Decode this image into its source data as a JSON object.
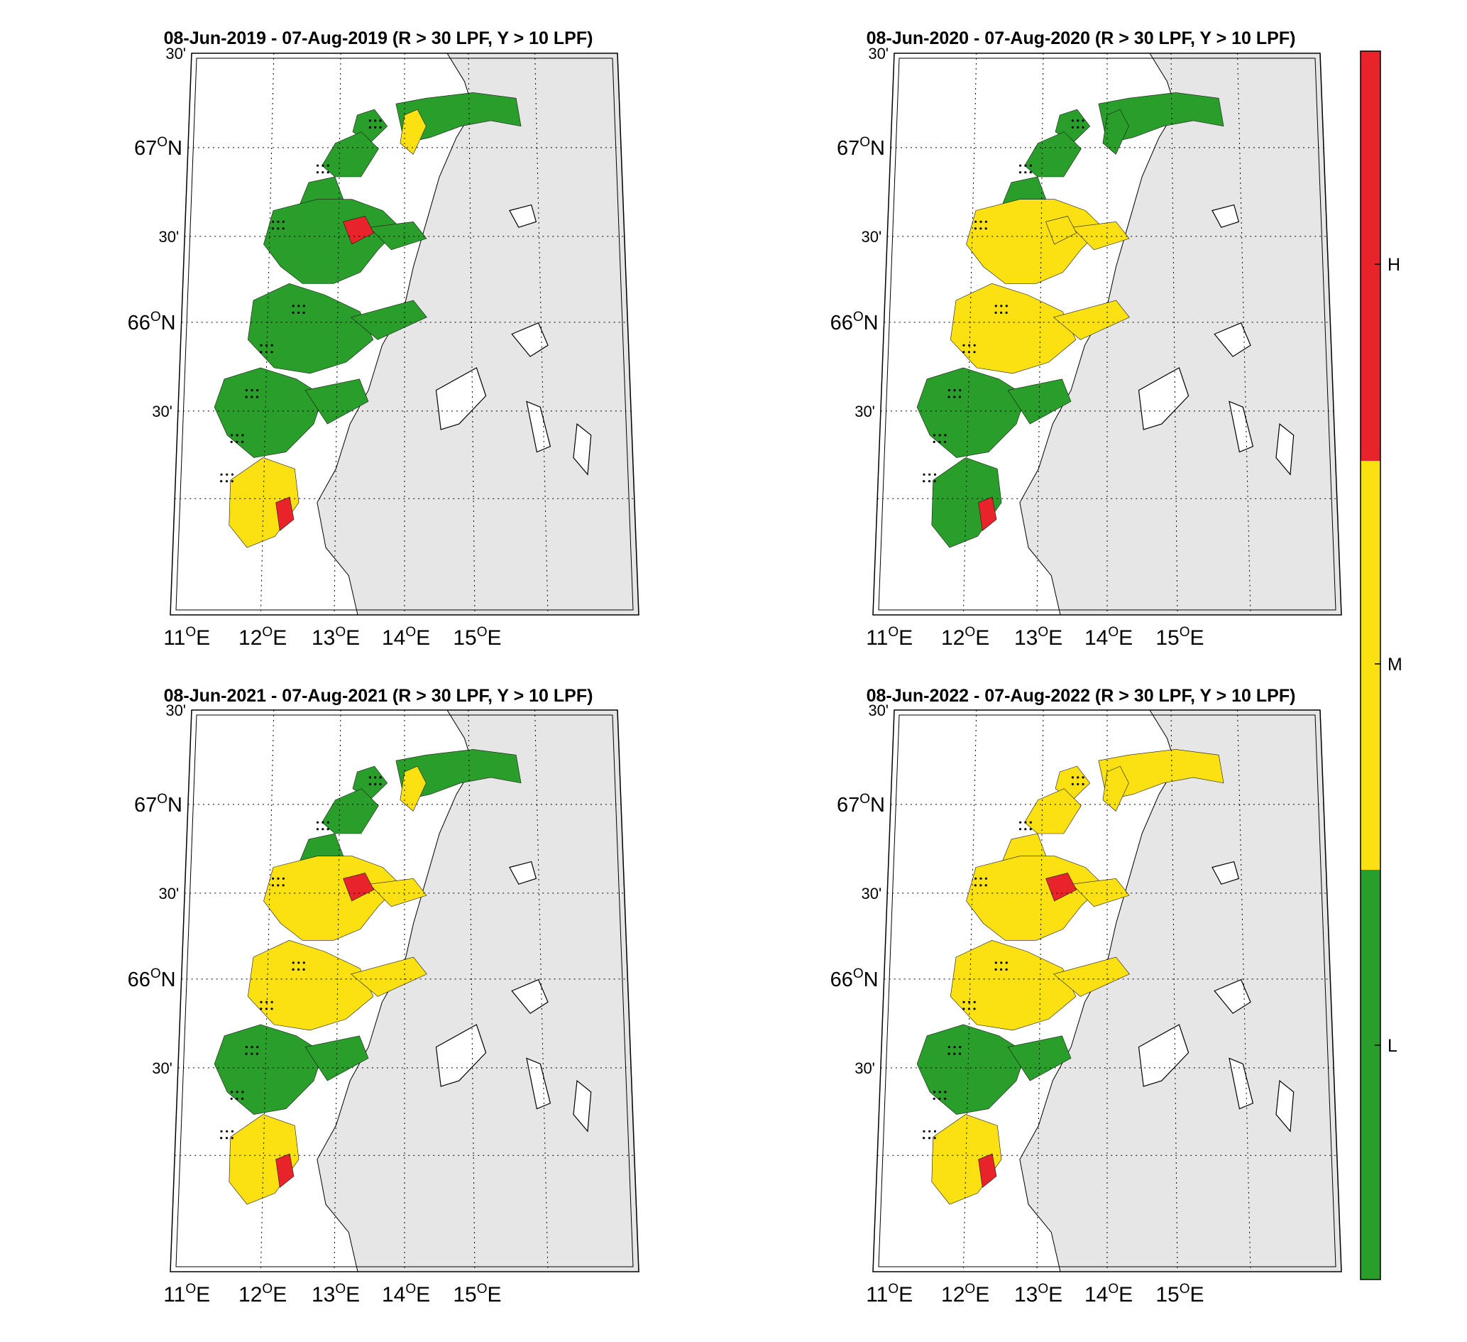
{
  "colors": {
    "high": "#e8232a",
    "medium": "#fbe111",
    "low": "#2a9e2a",
    "land": "#e6e6e6",
    "sea": "#ffffff",
    "coast": "#000000"
  },
  "panels": [
    {
      "title": "08-Jun-2019  - 07-Aug-2019  (R > 30 LPF, Y > 10 LPF)",
      "zones": {
        "north": "low",
        "tjeldsund": "medium",
        "upper": "low",
        "middle": "low",
        "ytre_south": "low",
        "south": "medium",
        "northbay": "low",
        "hotspot_a": "high",
        "hotspot_b": "high"
      }
    },
    {
      "title": "08-Jun-2020  - 07-Aug-2020  (R > 30 LPF, Y > 10 LPF)",
      "zones": {
        "north": "low",
        "tjeldsund": "low",
        "upper": "medium",
        "middle": "medium",
        "ytre_south": "low",
        "south": "low",
        "northbay": "low",
        "hotspot_a": "medium",
        "hotspot_b": "high"
      }
    },
    {
      "title": "08-Jun-2021  - 07-Aug-2021  (R > 30 LPF, Y > 10 LPF)",
      "zones": {
        "north": "low",
        "tjeldsund": "medium",
        "upper": "medium",
        "middle": "medium",
        "ytre_south": "low",
        "south": "medium",
        "northbay": "low",
        "hotspot_a": "high",
        "hotspot_b": "high"
      }
    },
    {
      "title": "08-Jun-2022  - 07-Aug-2022  (R > 30 LPF, Y > 10 LPF)",
      "zones": {
        "north": "medium",
        "tjeldsund": "medium",
        "upper": "medium",
        "middle": "medium",
        "ytre_south": "low",
        "south": "medium",
        "northbay": "medium",
        "hotspot_a": "high",
        "hotspot_b": "high"
      }
    }
  ],
  "axes": {
    "lat_labels": [
      {
        "deg": "67",
        "unit": "N"
      },
      {
        "deg": "66",
        "unit": "N"
      }
    ],
    "minute_label": "30'",
    "lon_labels": [
      {
        "deg": "11",
        "unit": "E"
      },
      {
        "deg": "12",
        "unit": "E"
      },
      {
        "deg": "13",
        "unit": "E"
      },
      {
        "deg": "14",
        "unit": "E"
      },
      {
        "deg": "15",
        "unit": "E"
      }
    ],
    "degree_symbol": "O"
  },
  "colorbar": {
    "labels": [
      "H",
      "M",
      "L"
    ]
  }
}
